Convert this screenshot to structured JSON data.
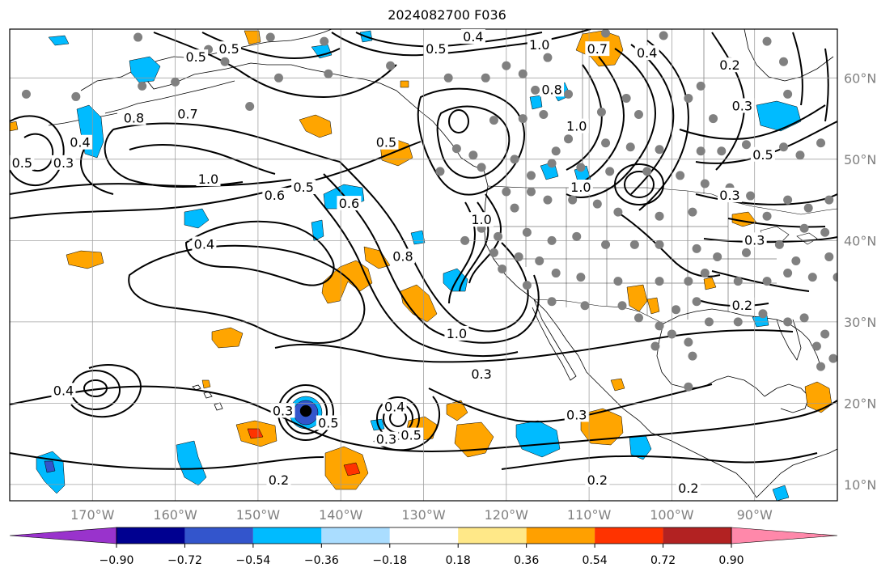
{
  "title": "2024082700 F036",
  "axes": {
    "lon_ticks": [
      {
        "lon": -170,
        "label": "170°W"
      },
      {
        "lon": -160,
        "label": "160°W"
      },
      {
        "lon": -150,
        "label": "150°W"
      },
      {
        "lon": -140,
        "label": "140°W"
      },
      {
        "lon": -130,
        "label": "130°W"
      },
      {
        "lon": -120,
        "label": "120°W"
      },
      {
        "lon": -110,
        "label": "110°W"
      },
      {
        "lon": -100,
        "label": "100°W"
      },
      {
        "lon": -90,
        "label": "90°W"
      }
    ],
    "lat_ticks": [
      {
        "lat": 60,
        "label": "60°N"
      },
      {
        "lat": 50,
        "label": "50°N"
      },
      {
        "lat": 40,
        "label": "40°N"
      },
      {
        "lat": 30,
        "label": "30°N"
      },
      {
        "lat": 20,
        "label": "20°N"
      },
      {
        "lat": 10,
        "label": "10°N"
      }
    ],
    "lon_range": [
      -180,
      -80
    ],
    "lat_range": [
      8,
      66
    ]
  },
  "colorbar": {
    "labels": [
      "−0.90",
      "−0.72",
      "−0.54",
      "−0.36",
      "−0.18",
      "0.18",
      "0.36",
      "0.54",
      "0.72",
      "0.90"
    ],
    "colors": [
      "#9933cc",
      "#000090",
      "#3355cc",
      "#00bbff",
      "#aaddff",
      "#ffffff",
      "#ffe888",
      "#ffa000",
      "#ff3300",
      "#b22222",
      "#ff88aa"
    ]
  },
  "colors": {
    "positive_fill": "#ffa500",
    "positive_strong": "#ff3300",
    "negative_fill": "#00bbff",
    "negative_strong": "#3355cc",
    "station": "#808080",
    "grid": "#999999"
  },
  "contour_labels": [
    {
      "text": "0.5",
      "lon": -157.5,
      "lat": 62.5
    },
    {
      "text": "0.5",
      "lon": -153.5,
      "lat": 63.5
    },
    {
      "text": "0.4",
      "lon": -124,
      "lat": 65
    },
    {
      "text": "0.5",
      "lon": -128.5,
      "lat": 63.5
    },
    {
      "text": "1.0",
      "lon": -116,
      "lat": 64
    },
    {
      "text": "0.7",
      "lon": -109,
      "lat": 63.5
    },
    {
      "text": "0.4",
      "lon": -103,
      "lat": 63
    },
    {
      "text": "0.2",
      "lon": -93,
      "lat": 61.5
    },
    {
      "text": "0.8",
      "lon": -165,
      "lat": 55
    },
    {
      "text": "0.7",
      "lon": -158.5,
      "lat": 55.5
    },
    {
      "text": "0.4",
      "lon": -171.5,
      "lat": 52
    },
    {
      "text": "0.3",
      "lon": -173.5,
      "lat": 49.5
    },
    {
      "text": "0.5",
      "lon": -178.5,
      "lat": 49.5
    },
    {
      "text": "0.5",
      "lon": -134.5,
      "lat": 52
    },
    {
      "text": "0.8",
      "lon": -114.5,
      "lat": 58.5
    },
    {
      "text": "1.0",
      "lon": -111.5,
      "lat": 54
    },
    {
      "text": "1.0",
      "lon": -156,
      "lat": 47.5
    },
    {
      "text": "0.6",
      "lon": -148,
      "lat": 45.5
    },
    {
      "text": "0.5",
      "lon": -144.5,
      "lat": 46.5
    },
    {
      "text": "0.6",
      "lon": -139,
      "lat": 44.5
    },
    {
      "text": "0.4",
      "lon": -156.5,
      "lat": 39.5
    },
    {
      "text": "0.8",
      "lon": -132.5,
      "lat": 38
    },
    {
      "text": "1.0",
      "lon": -123,
      "lat": 42.5
    },
    {
      "text": "1.0",
      "lon": -111,
      "lat": 46.5
    },
    {
      "text": "1.0",
      "lon": -126,
      "lat": 28.5
    },
    {
      "text": "0.3",
      "lon": -123,
      "lat": 23.5
    },
    {
      "text": "0.3",
      "lon": -93,
      "lat": 45.5
    },
    {
      "text": "0.5",
      "lon": -89,
      "lat": 50.5
    },
    {
      "text": "0.3",
      "lon": -91.5,
      "lat": 56.5
    },
    {
      "text": "0.3",
      "lon": -90,
      "lat": 40
    },
    {
      "text": "0.2",
      "lon": -91.5,
      "lat": 32
    },
    {
      "text": "0.4",
      "lon": -173.5,
      "lat": 21.5
    },
    {
      "text": "0.3",
      "lon": -147,
      "lat": 19
    },
    {
      "text": "0.5",
      "lon": -141.5,
      "lat": 17.5
    },
    {
      "text": "0.4",
      "lon": -133.5,
      "lat": 19.5
    },
    {
      "text": "0.3",
      "lon": -134.5,
      "lat": 15.5
    },
    {
      "text": "0.5",
      "lon": -131.5,
      "lat": 16
    },
    {
      "text": "0.3",
      "lon": -111.5,
      "lat": 18.5
    },
    {
      "text": "0.2",
      "lon": -109,
      "lat": 10.5
    },
    {
      "text": "0.2",
      "lon": -147.5,
      "lat": 10.5
    },
    {
      "text": "0.2",
      "lon": -98,
      "lat": 9.5
    }
  ],
  "stations": [
    [
      -164.5,
      65
    ],
    [
      -148.5,
      65
    ],
    [
      -142,
      64.5
    ],
    [
      -156,
      63.5
    ],
    [
      -154,
      62
    ],
    [
      -164,
      59
    ],
    [
      -160,
      59.5
    ],
    [
      -147.5,
      60
    ],
    [
      -141.5,
      60.5
    ],
    [
      -134,
      61.5
    ],
    [
      -120,
      61.5
    ],
    [
      -115,
      62.5
    ],
    [
      -108,
      65.5
    ],
    [
      -101,
      65.2
    ],
    [
      -178,
      58
    ],
    [
      -172,
      57.7
    ],
    [
      -151,
      56.5
    ],
    [
      -127,
      60
    ],
    [
      -122.5,
      60
    ],
    [
      -118,
      60.5
    ],
    [
      -116.5,
      58.5
    ],
    [
      -112.5,
      58
    ],
    [
      -105.5,
      57.5
    ],
    [
      -98,
      57.5
    ],
    [
      -95,
      55
    ],
    [
      -104,
      55.5
    ],
    [
      -108.5,
      55.8
    ],
    [
      -93,
      62
    ],
    [
      -88.5,
      64.5
    ],
    [
      -86.5,
      62
    ],
    [
      -96.5,
      59
    ],
    [
      -86,
      58
    ],
    [
      -121.5,
      54.8
    ],
    [
      -118,
      55
    ],
    [
      -115.5,
      55.5
    ],
    [
      -114,
      51
    ],
    [
      -112.5,
      52.5
    ],
    [
      -108,
      52
    ],
    [
      -105,
      51.5
    ],
    [
      -101.5,
      51.2
    ],
    [
      -96.5,
      51
    ],
    [
      -94,
      51
    ],
    [
      -91,
      51.8
    ],
    [
      -86.5,
      51.5
    ],
    [
      -84.5,
      50.5
    ],
    [
      -82,
      52
    ],
    [
      -124,
      50.5
    ],
    [
      -126,
      51.3
    ],
    [
      -119,
      50
    ],
    [
      -114.5,
      49.5
    ],
    [
      -111,
      49
    ],
    [
      -107.5,
      48.5
    ],
    [
      -103,
      48.5
    ],
    [
      -99,
      48
    ],
    [
      -96,
      47
    ],
    [
      -93,
      46.5
    ],
    [
      -90.5,
      45.5
    ],
    [
      -86,
      45
    ],
    [
      -83.5,
      44
    ],
    [
      -81,
      45
    ],
    [
      -123,
      49
    ],
    [
      -128,
      48.5
    ],
    [
      -117,
      48
    ],
    [
      -120,
      46
    ],
    [
      -117,
      46
    ],
    [
      -115,
      45
    ],
    [
      -112,
      45
    ],
    [
      -109,
      44.5
    ],
    [
      -106.5,
      43.5
    ],
    [
      -101.5,
      43
    ],
    [
      -97.5,
      43.5
    ],
    [
      -88.5,
      43
    ],
    [
      -84,
      41.5
    ],
    [
      -81.5,
      41
    ],
    [
      -119,
      44
    ],
    [
      -121,
      40.5
    ],
    [
      -123,
      41.5
    ],
    [
      -125,
      40
    ],
    [
      -121.5,
      38.5
    ],
    [
      -117.5,
      41
    ],
    [
      -114.5,
      40
    ],
    [
      -111.5,
      40.5
    ],
    [
      -108,
      39.5
    ],
    [
      -104.5,
      39.5
    ],
    [
      -101.5,
      39.5
    ],
    [
      -97,
      39
    ],
    [
      -94.5,
      38
    ],
    [
      -91,
      38.5
    ],
    [
      -87,
      39.5
    ],
    [
      -85,
      37.5
    ],
    [
      -81,
      38
    ],
    [
      -118.5,
      38
    ],
    [
      -116,
      37.5
    ],
    [
      -120.5,
      36.5
    ],
    [
      -117.5,
      34.5
    ],
    [
      -114,
      36
    ],
    [
      -111,
      35.5
    ],
    [
      -106.5,
      35
    ],
    [
      -101.5,
      35
    ],
    [
      -98,
      35
    ],
    [
      -96,
      36
    ],
    [
      -92,
      35
    ],
    [
      -88.5,
      35
    ],
    [
      -86,
      36
    ],
    [
      -83,
      35.5
    ],
    [
      -80,
      35.5
    ],
    [
      -114.5,
      32.5
    ],
    [
      -110.5,
      32
    ],
    [
      -106,
      32
    ],
    [
      -104,
      30.5
    ],
    [
      -101.5,
      29.5
    ],
    [
      -99.5,
      31.5
    ],
    [
      -97,
      32.5
    ],
    [
      -95.5,
      30
    ],
    [
      -92,
      30
    ],
    [
      -89,
      31
    ],
    [
      -86,
      30
    ],
    [
      -84,
      30.5
    ],
    [
      -81.5,
      28.5
    ],
    [
      -80.5,
      25.5
    ],
    [
      -82.5,
      27
    ],
    [
      -98,
      27.5
    ],
    [
      -97.5,
      25.8
    ],
    [
      -100,
      28.5
    ],
    [
      -102,
      27
    ],
    [
      -98,
      22
    ],
    [
      -82,
      24.5
    ]
  ]
}
